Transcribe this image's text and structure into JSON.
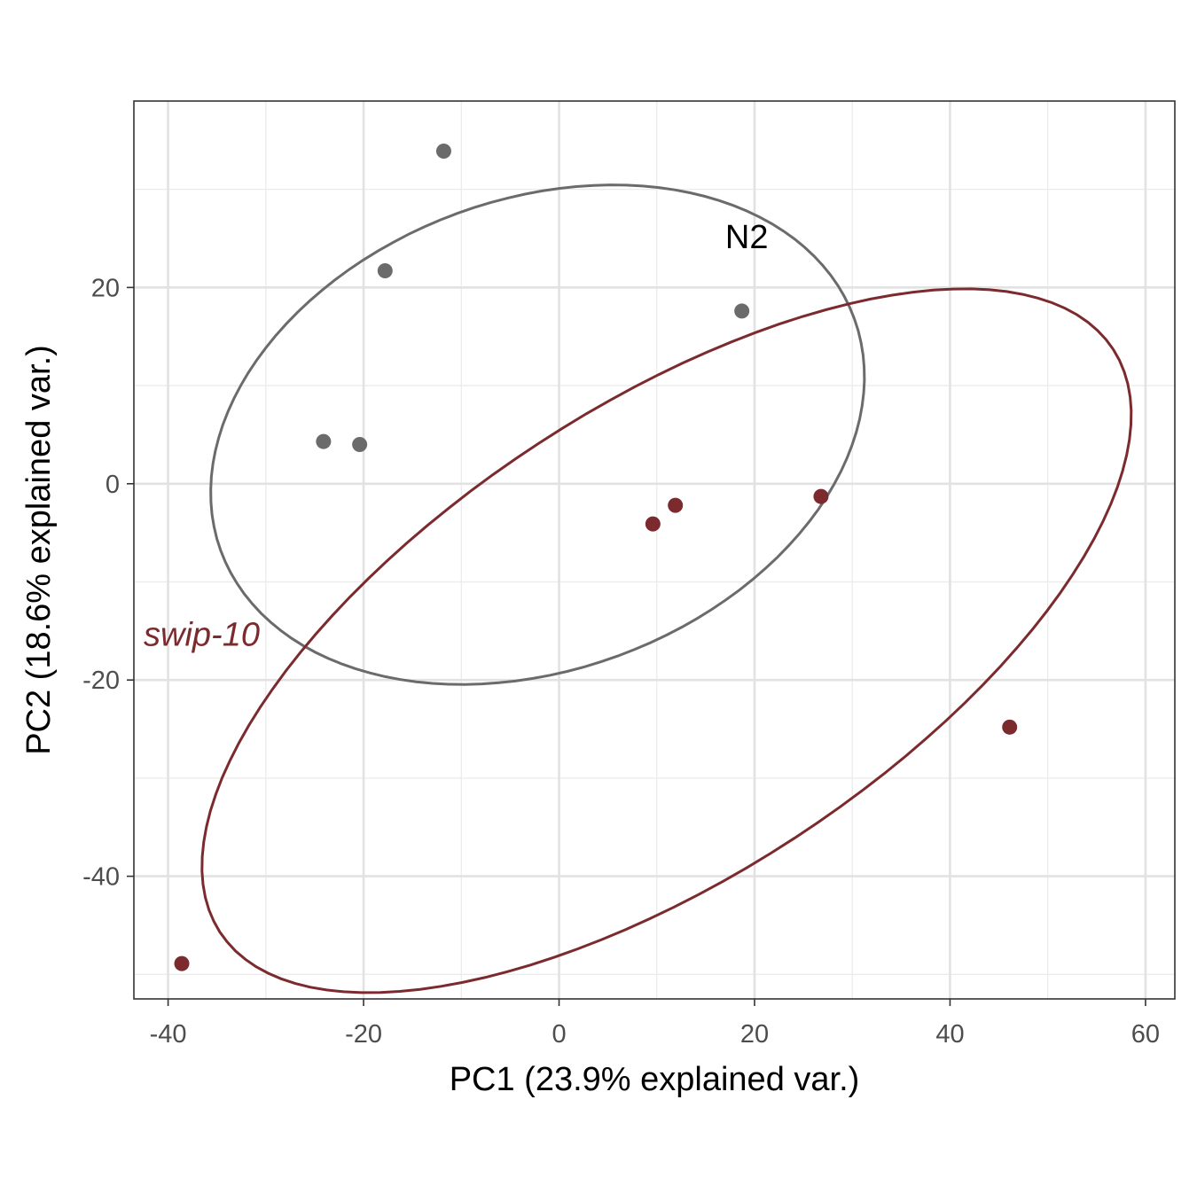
{
  "chart_data": {
    "type": "scatter",
    "title": "",
    "xlabel": "PC1 (23.9% explained var.)",
    "ylabel": "PC2 (18.6% explained var.)",
    "xlim": [
      -43.5,
      63
    ],
    "ylim": [
      -52.5,
      39
    ],
    "x_ticks": [
      -40,
      -20,
      0,
      20,
      40,
      60
    ],
    "y_ticks": [
      -40,
      -20,
      0,
      20
    ],
    "x_tick_labels": [
      "-40",
      "-20",
      "0",
      "20",
      "40",
      "60"
    ],
    "y_tick_labels": [
      "-40",
      "-20",
      "0",
      "20"
    ],
    "grid": true,
    "legend": "none",
    "series": [
      {
        "name": "N2",
        "color": "#6b6b6b",
        "label_style": "normal",
        "label_at": [
          17,
          24
        ],
        "points": [
          {
            "x": -11.8,
            "y": 33.9
          },
          {
            "x": -17.8,
            "y": 21.7
          },
          {
            "x": 18.7,
            "y": 17.6
          },
          {
            "x": -24.1,
            "y": 4.3
          },
          {
            "x": -20.4,
            "y": 4.0
          }
        ],
        "ellipse": {
          "cx": -2.2,
          "cy": 5.0,
          "a": 34.5,
          "b": 24.0,
          "angle_deg": 20
        }
      },
      {
        "name": "swip-10",
        "color": "#7b2a2e",
        "label_style": "italic",
        "label_at": [
          -42.5,
          -16.5
        ],
        "points": [
          {
            "x": 9.6,
            "y": -4.1
          },
          {
            "x": 11.9,
            "y": -2.2
          },
          {
            "x": 26.8,
            "y": -1.3
          },
          {
            "x": 46.1,
            "y": -24.8
          },
          {
            "x": -38.6,
            "y": -48.9
          }
        ],
        "ellipse": {
          "cx": 11.0,
          "cy": -16.0,
          "a": 54.5,
          "b": 24.0,
          "angle_deg": 33
        }
      }
    ]
  }
}
